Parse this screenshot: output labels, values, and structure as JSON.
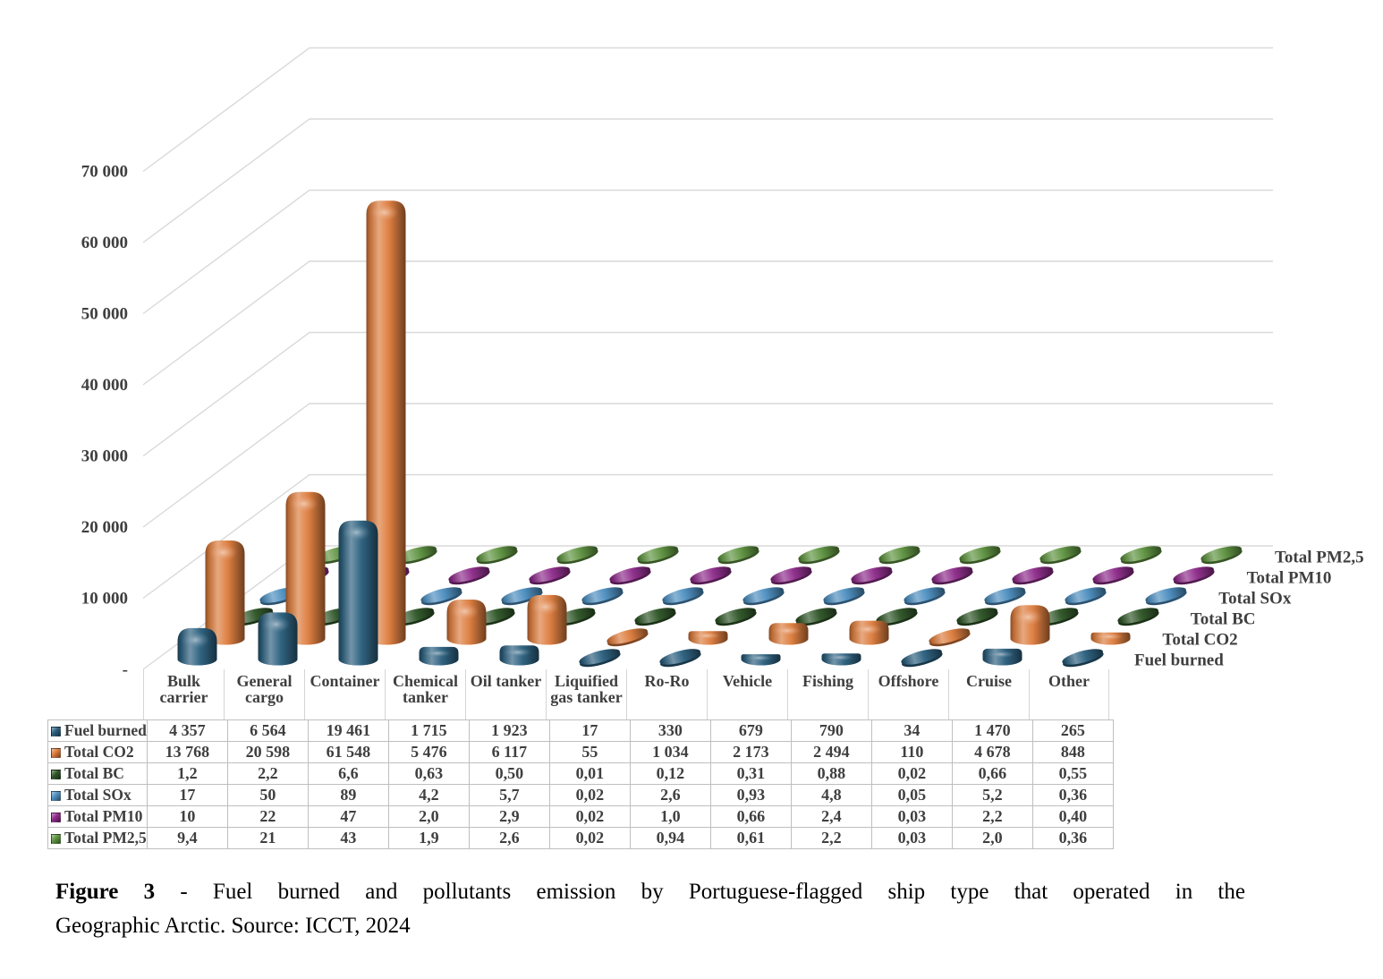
{
  "chart_data": {
    "type": "bar",
    "style": "3d-cylinder",
    "title": "",
    "grid": true,
    "legend_position": "right-depth-axis",
    "categories": [
      "Bulk carrier",
      "General cargo",
      "Container",
      "Chemical tanker",
      "Oil tanker",
      "Liquified gas tanker",
      "Ro-Ro",
      "Vehicle",
      "Fishing",
      "Offshore",
      "Cruise",
      "Other"
    ],
    "series": [
      {
        "name": "Fuel burned",
        "color": "#2B5F7E",
        "values": [
          4357,
          6564,
          19461,
          1715,
          1923,
          17,
          330,
          679,
          790,
          34,
          1470,
          265
        ],
        "labels": [
          "4 357",
          "6 564",
          "19 461",
          "1 715",
          "1 923",
          "17",
          "330",
          "679",
          "790",
          "34",
          "1 470",
          "265"
        ]
      },
      {
        "name": "Total CO2",
        "color": "#DC7B3C",
        "values": [
          13768,
          20598,
          61548,
          5476,
          6117,
          55,
          1034,
          2173,
          2494,
          110,
          4678,
          848
        ],
        "labels": [
          "13 768",
          "20 598",
          "61 548",
          "5 476",
          "6 117",
          "55",
          "1 034",
          "2 173",
          "2 494",
          "110",
          "4 678",
          "848"
        ]
      },
      {
        "name": "Total BC",
        "color": "#2F5628",
        "values": [
          1.2,
          2.2,
          6.6,
          0.63,
          0.5,
          0.01,
          0.12,
          0.31,
          0.88,
          0.02,
          0.66,
          0.55
        ],
        "labels": [
          "1,2",
          "2,2",
          "6,6",
          "0,63",
          "0,50",
          "0,01",
          "0,12",
          "0,31",
          "0,88",
          "0,02",
          "0,66",
          "0,55"
        ]
      },
      {
        "name": "Total SOx",
        "color": "#4C8EBF",
        "values": [
          17,
          50,
          89,
          4.2,
          5.7,
          0.02,
          2.6,
          0.93,
          4.8,
          0.05,
          5.2,
          0.36
        ],
        "labels": [
          "17",
          "50",
          "89",
          "4,2",
          "5,7",
          "0,02",
          "2,6",
          "0,93",
          "4,8",
          "0,05",
          "5,2",
          "0,36"
        ]
      },
      {
        "name": "Total PM10",
        "color": "#8E2C8A",
        "values": [
          10,
          22,
          47,
          2.0,
          2.9,
          0.02,
          1.0,
          0.66,
          2.4,
          0.03,
          2.2,
          0.4
        ],
        "labels": [
          "10",
          "22",
          "47",
          "2,0",
          "2,9",
          "0,02",
          "1,0",
          "0,66",
          "2,4",
          "0,03",
          "2,2",
          "0,40"
        ]
      },
      {
        "name": "Total PM2,5",
        "color": "#5E9340",
        "values": [
          9.4,
          21,
          43,
          1.9,
          2.6,
          0.02,
          0.94,
          0.61,
          2.2,
          0.03,
          2.0,
          0.36
        ],
        "labels": [
          "9,4",
          "21",
          "43",
          "1,9",
          "2,6",
          "0,02",
          "0,94",
          "0,61",
          "2,2",
          "0,03",
          "2,0",
          "0,36"
        ]
      }
    ],
    "ylim": [
      0,
      70000
    ],
    "y_ticks": [
      {
        "value": 0,
        "label": "-"
      },
      {
        "value": 10000,
        "label": "10 000"
      },
      {
        "value": 20000,
        "label": "20 000"
      },
      {
        "value": 30000,
        "label": "30 000"
      },
      {
        "value": 40000,
        "label": "40 000"
      },
      {
        "value": 50000,
        "label": "50 000"
      },
      {
        "value": 60000,
        "label": "60 000"
      },
      {
        "value": 70000,
        "label": "70 000"
      }
    ],
    "colors_meta": {
      "grid": "#D9D9D9",
      "axis_text": "#3F3F3F",
      "table_border": "#BFBFBF"
    }
  },
  "caption": {
    "figure_label": "Figure 3",
    "line1": " - Fuel burned and pollutants emission by Portuguese-flagged ship type that operated in the",
    "line2": "Geographic Arctic. Source: ICCT, 2024"
  }
}
